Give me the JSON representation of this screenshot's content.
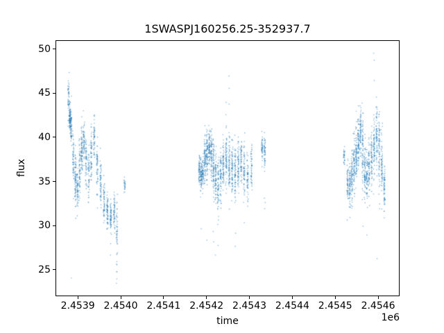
{
  "figure": {
    "title": "1SWASPJ160256.25-352937.7",
    "xlabel": "time",
    "ylabel": "flux",
    "offset_text": "1e6"
  },
  "chart_data": {
    "type": "scatter",
    "title": "1SWASPJ160256.25-352937.7",
    "xlabel": "time",
    "ylabel": "flux",
    "x_offset_label": "1e6",
    "grid": false,
    "legend": null,
    "xlim": [
      2453848,
      2454650
    ],
    "ylim": [
      22.0,
      51.0
    ],
    "xticks": {
      "values": [
        2453900,
        2454000,
        2454100,
        2454200,
        2454300,
        2454400,
        2454500,
        2454600
      ],
      "labels": [
        "2.4539",
        "2.4540",
        "2.4541",
        "2.4542",
        "2.4543",
        "2.4544",
        "2.4545",
        "2.4546"
      ]
    },
    "yticks": {
      "values": [
        25,
        30,
        35,
        40,
        45,
        50
      ],
      "labels": [
        "25",
        "30",
        "35",
        "40",
        "45",
        "50"
      ]
    },
    "marker_color": "#1f77b4",
    "marker_alpha": 0.55,
    "marker_radius": 0.8,
    "point_model": "gaussian-nights",
    "nights": [
      {
        "t": 2453877,
        "n": 45,
        "f": 44.5,
        "s": 1.4
      },
      {
        "t": 2453880,
        "n": 85,
        "f": 42.3,
        "s": 0.8
      },
      {
        "t": 2453883,
        "n": 65,
        "f": 41.2,
        "s": 0.9,
        "lo": [
          24.0
        ]
      },
      {
        "t": 2453888,
        "n": 55,
        "f": 37.8,
        "s": 1.6
      },
      {
        "t": 2453893,
        "n": 75,
        "f": 35.2,
        "s": 1.4,
        "lo": [
          30.8
        ]
      },
      {
        "t": 2453898,
        "n": 55,
        "f": 34.0,
        "s": 1.1
      },
      {
        "t": 2453903,
        "n": 65,
        "f": 36.3,
        "s": 1.6
      },
      {
        "t": 2453908,
        "n": 75,
        "f": 38.3,
        "s": 1.5
      },
      {
        "t": 2453913,
        "n": 55,
        "f": 39.6,
        "s": 1.2
      },
      {
        "t": 2453918,
        "n": 55,
        "f": 37.2,
        "s": 1.5
      },
      {
        "t": 2453924,
        "n": 50,
        "f": 35.6,
        "s": 1.3
      },
      {
        "t": 2453930,
        "n": 60,
        "f": 37.8,
        "s": 1.7
      },
      {
        "t": 2453937,
        "n": 50,
        "f": 39.8,
        "s": 1.3
      },
      {
        "t": 2453944,
        "n": 55,
        "f": 37.0,
        "s": 1.6
      },
      {
        "t": 2453952,
        "n": 60,
        "f": 34.5,
        "s": 1.4
      },
      {
        "t": 2453960,
        "n": 55,
        "f": 33.0,
        "s": 1.2
      },
      {
        "t": 2453968,
        "n": 65,
        "f": 31.5,
        "s": 1.0
      },
      {
        "t": 2453976,
        "n": 60,
        "f": 31.0,
        "s": 0.9,
        "lo": [
          26.6,
          27.9
        ]
      },
      {
        "t": 2453984,
        "n": 55,
        "f": 31.8,
        "s": 1.1
      },
      {
        "t": 2453990,
        "n": 45,
        "f": 29.5,
        "s": 2.0,
        "lo": [
          23.4,
          23.9,
          24.7,
          25.5
        ]
      },
      {
        "t": 2454008,
        "n": 25,
        "f": 34.8,
        "s": 0.5
      },
      {
        "t": 2454183,
        "n": 60,
        "f": 36.2,
        "s": 0.9
      },
      {
        "t": 2454187,
        "n": 70,
        "f": 35.6,
        "s": 0.8,
        "lo": [
          29.6
        ]
      },
      {
        "t": 2454191,
        "n": 60,
        "f": 36.0,
        "s": 1.0
      },
      {
        "t": 2454196,
        "n": 75,
        "f": 37.5,
        "s": 1.3
      },
      {
        "t": 2454201,
        "n": 80,
        "f": 38.3,
        "s": 1.2,
        "lo": [
          28.3
        ]
      },
      {
        "t": 2454206,
        "n": 70,
        "f": 38.8,
        "s": 1.1
      },
      {
        "t": 2454211,
        "n": 70,
        "f": 38.0,
        "s": 1.4
      },
      {
        "t": 2454216,
        "n": 75,
        "f": 36.8,
        "s": 1.5,
        "lo": [
          28.1,
          29.3
        ]
      },
      {
        "t": 2454221,
        "n": 70,
        "f": 35.5,
        "s": 1.6,
        "lo": [
          26.6
        ]
      },
      {
        "t": 2454227,
        "n": 65,
        "f": 34.5,
        "s": 1.5,
        "lo": [
          27.7,
          30.1
        ]
      },
      {
        "t": 2454233,
        "n": 65,
        "f": 35.8,
        "s": 1.4
      },
      {
        "t": 2454239,
        "n": 70,
        "f": 37.0,
        "s": 1.3
      },
      {
        "t": 2454246,
        "n": 70,
        "f": 37.8,
        "s": 1.5,
        "hi": [
          42.6,
          44.0
        ]
      },
      {
        "t": 2454253,
        "n": 70,
        "f": 37.2,
        "s": 1.8,
        "hi": [
          43.8,
          45.6,
          47.0
        ]
      },
      {
        "t": 2454260,
        "n": 70,
        "f": 36.5,
        "s": 1.5
      },
      {
        "t": 2454267,
        "n": 70,
        "f": 36.0,
        "s": 1.6,
        "lo": [
          27.6,
          29.1
        ]
      },
      {
        "t": 2454274,
        "n": 65,
        "f": 36.8,
        "s": 1.4
      },
      {
        "t": 2454281,
        "n": 60,
        "f": 37.2,
        "s": 1.2
      },
      {
        "t": 2454288,
        "n": 60,
        "f": 36.2,
        "s": 1.5,
        "lo": [
          30.3
        ]
      },
      {
        "t": 2454296,
        "n": 55,
        "f": 35.5,
        "s": 1.3
      },
      {
        "t": 2454305,
        "n": 50,
        "f": 36.8,
        "s": 1.2
      },
      {
        "t": 2454330,
        "n": 45,
        "f": 38.8,
        "s": 0.7
      },
      {
        "t": 2454336,
        "n": 50,
        "f": 38.4,
        "s": 0.9,
        "lo": [
          31.9,
          32.6,
          33.1
        ]
      },
      {
        "t": 2454522,
        "n": 30,
        "f": 38.0,
        "s": 0.5
      },
      {
        "t": 2454530,
        "n": 55,
        "f": 35.0,
        "s": 1.3,
        "lo": [
          30.6
        ]
      },
      {
        "t": 2454535,
        "n": 65,
        "f": 34.2,
        "s": 1.2
      },
      {
        "t": 2454540,
        "n": 70,
        "f": 35.5,
        "s": 1.5
      },
      {
        "t": 2454545,
        "n": 70,
        "f": 36.8,
        "s": 1.5
      },
      {
        "t": 2454550,
        "n": 75,
        "f": 38.0,
        "s": 1.6,
        "hi": [
          43.0
        ]
      },
      {
        "t": 2454555,
        "n": 75,
        "f": 39.5,
        "s": 1.6,
        "hi": [
          43.6
        ]
      },
      {
        "t": 2454560,
        "n": 70,
        "f": 40.5,
        "s": 1.4
      },
      {
        "t": 2454565,
        "n": 70,
        "f": 38.5,
        "s": 1.8,
        "lo": [
          29.9
        ]
      },
      {
        "t": 2454570,
        "n": 70,
        "f": 36.5,
        "s": 1.6
      },
      {
        "t": 2454575,
        "n": 65,
        "f": 35.5,
        "s": 1.4,
        "lo": [
          28.9
        ]
      },
      {
        "t": 2454580,
        "n": 65,
        "f": 36.2,
        "s": 1.5
      },
      {
        "t": 2454586,
        "n": 65,
        "f": 37.5,
        "s": 1.6
      },
      {
        "t": 2454592,
        "n": 70,
        "f": 39.0,
        "s": 1.8,
        "hi": [
          46.5,
          48.8,
          49.6
        ]
      },
      {
        "t": 2454598,
        "n": 70,
        "f": 40.0,
        "s": 1.8,
        "hi": [
          44.6
        ],
        "lo": [
          26.2
        ]
      },
      {
        "t": 2454604,
        "n": 70,
        "f": 38.5,
        "s": 2.0,
        "lo": [
          31.9
        ]
      },
      {
        "t": 2454610,
        "n": 65,
        "f": 36.5,
        "s": 1.8
      },
      {
        "t": 2454616,
        "n": 60,
        "f": 34.5,
        "s": 1.5,
        "lo": [
          31.6
        ]
      }
    ]
  }
}
